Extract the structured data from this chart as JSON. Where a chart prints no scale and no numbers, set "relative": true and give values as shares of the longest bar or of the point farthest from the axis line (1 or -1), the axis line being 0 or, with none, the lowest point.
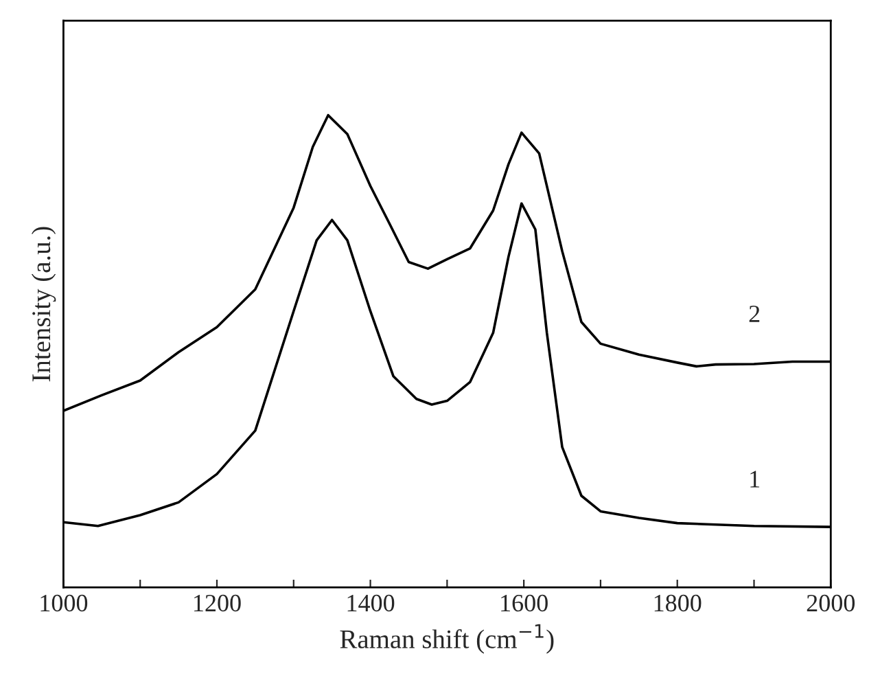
{
  "chart_data": {
    "type": "line",
    "relative": true,
    "xlabel": "Raman shift (cm$^{−1}$)",
    "ylabel": "Intensity (a.u.)",
    "xlim": [
      1000,
      2000
    ],
    "xticks": [
      1000,
      {
        "value": 1100,
        "label": null
      },
      1200,
      {
        "value": 1300,
        "label": null
      },
      1400,
      {
        "value": 1500,
        "label": null
      },
      1600,
      {
        "value": 1700,
        "label": null
      },
      1800,
      {
        "value": 1900,
        "label": null
      },
      2000
    ],
    "grid": false,
    "legend": false,
    "marker": "none",
    "line_style": "solid",
    "series": [
      {
        "name": "1",
        "color": "#000000",
        "x": [
          1000,
          1045,
          1100,
          1150,
          1200,
          1250,
          1300,
          1330,
          1350,
          1370,
          1400,
          1430,
          1460,
          1480,
          1500,
          1530,
          1560,
          1580,
          1597,
          1615,
          1630,
          1650,
          1675,
          1700,
          1750,
          1800,
          1900,
          2000
        ],
        "values": [
          0.138,
          0.13,
          0.153,
          0.18,
          0.24,
          0.332,
          0.585,
          0.735,
          0.778,
          0.735,
          0.585,
          0.447,
          0.399,
          0.387,
          0.395,
          0.435,
          0.539,
          0.7,
          0.813,
          0.758,
          0.539,
          0.297,
          0.194,
          0.161,
          0.147,
          0.136,
          0.13,
          0.128
        ]
      },
      {
        "name": "2",
        "color": "#000000",
        "x": [
          1000,
          1050,
          1100,
          1150,
          1200,
          1250,
          1300,
          1325,
          1345,
          1370,
          1400,
          1425,
          1450,
          1475,
          1500,
          1530,
          1560,
          1580,
          1597,
          1620,
          1650,
          1675,
          1700,
          1750,
          1800,
          1825,
          1850,
          1900,
          1950,
          2000
        ],
        "values": [
          0.374,
          0.407,
          0.438,
          0.498,
          0.551,
          0.631,
          0.804,
          0.933,
          1.0,
          0.96,
          0.85,
          0.77,
          0.689,
          0.675,
          0.695,
          0.718,
          0.798,
          0.896,
          0.963,
          0.919,
          0.712,
          0.562,
          0.516,
          0.493,
          0.476,
          0.468,
          0.472,
          0.473,
          0.478,
          0.478
        ]
      }
    ]
  }
}
